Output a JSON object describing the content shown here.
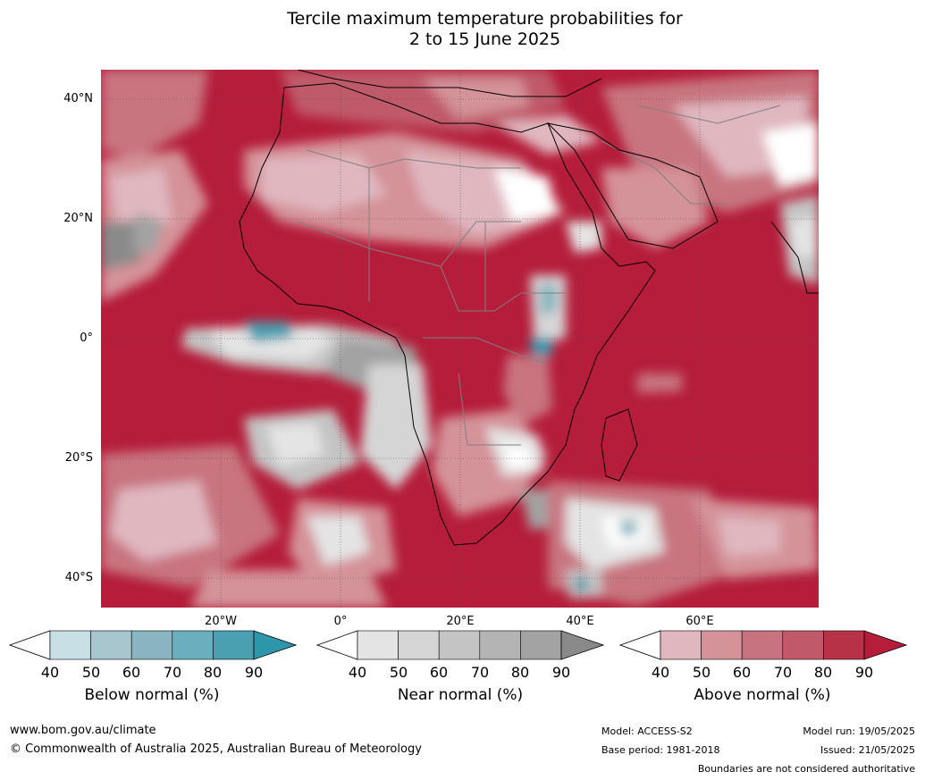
{
  "title": {
    "line1": "Tercile maximum temperature probabilities for",
    "line2": "2 to 15 June 2025"
  },
  "map": {
    "lat_labels": [
      "40°N",
      "20°N",
      "0°",
      "20°S",
      "40°S"
    ],
    "lon_labels": [
      "20°W",
      "0°",
      "20°E",
      "40°E",
      "60°E"
    ],
    "colors": {
      "above": [
        "#e0b7bf",
        "#d49299",
        "#c87480",
        "#bf5a6a",
        "#b83247",
        "#b51d3a"
      ],
      "near": [
        "#e4e4e4",
        "#d5d5d5",
        "#c4c4c4",
        "#b4b4b4",
        "#a3a3a3",
        "#8a8a8a"
      ],
      "below": [
        "#c8dfe5",
        "#a7c6cd",
        "#89b5c0",
        "#6baebd",
        "#4a9fb0",
        "#2d96ab"
      ],
      "land_border": "#808080",
      "coast": "#000000"
    }
  },
  "legends": [
    {
      "title": "Below normal (%)",
      "ticks": [
        "40",
        "50",
        "60",
        "70",
        "80",
        "90"
      ],
      "colors": [
        "#ffffff",
        "#c8dfe5",
        "#a7c6cd",
        "#89b5c0",
        "#6baebd",
        "#4a9fb0",
        "#2d96ab"
      ]
    },
    {
      "title": "Near normal (%)",
      "ticks": [
        "40",
        "50",
        "60",
        "70",
        "80",
        "90"
      ],
      "colors": [
        "#ffffff",
        "#e4e4e4",
        "#d5d5d5",
        "#c4c4c4",
        "#b4b4b4",
        "#a3a3a3",
        "#8a8a8a"
      ]
    },
    {
      "title": "Above normal (%)",
      "ticks": [
        "40",
        "50",
        "60",
        "70",
        "80",
        "90"
      ],
      "colors": [
        "#ffffff",
        "#e0b7bf",
        "#d49299",
        "#c87480",
        "#bf5a6a",
        "#b83247",
        "#b51d3a"
      ]
    }
  ],
  "footer": {
    "website": "www.bom.gov.au/climate",
    "copyright": "© Commonwealth of Australia 2025, Australian Bureau of Meteorology",
    "model": "Model: ACCESS-S2",
    "base_period": "Base period: 1981-2018",
    "model_run": "Model run: 19/05/2025",
    "issued": "Issued: 21/05/2025",
    "disclaimer": "Boundaries are not considered authoritative"
  }
}
